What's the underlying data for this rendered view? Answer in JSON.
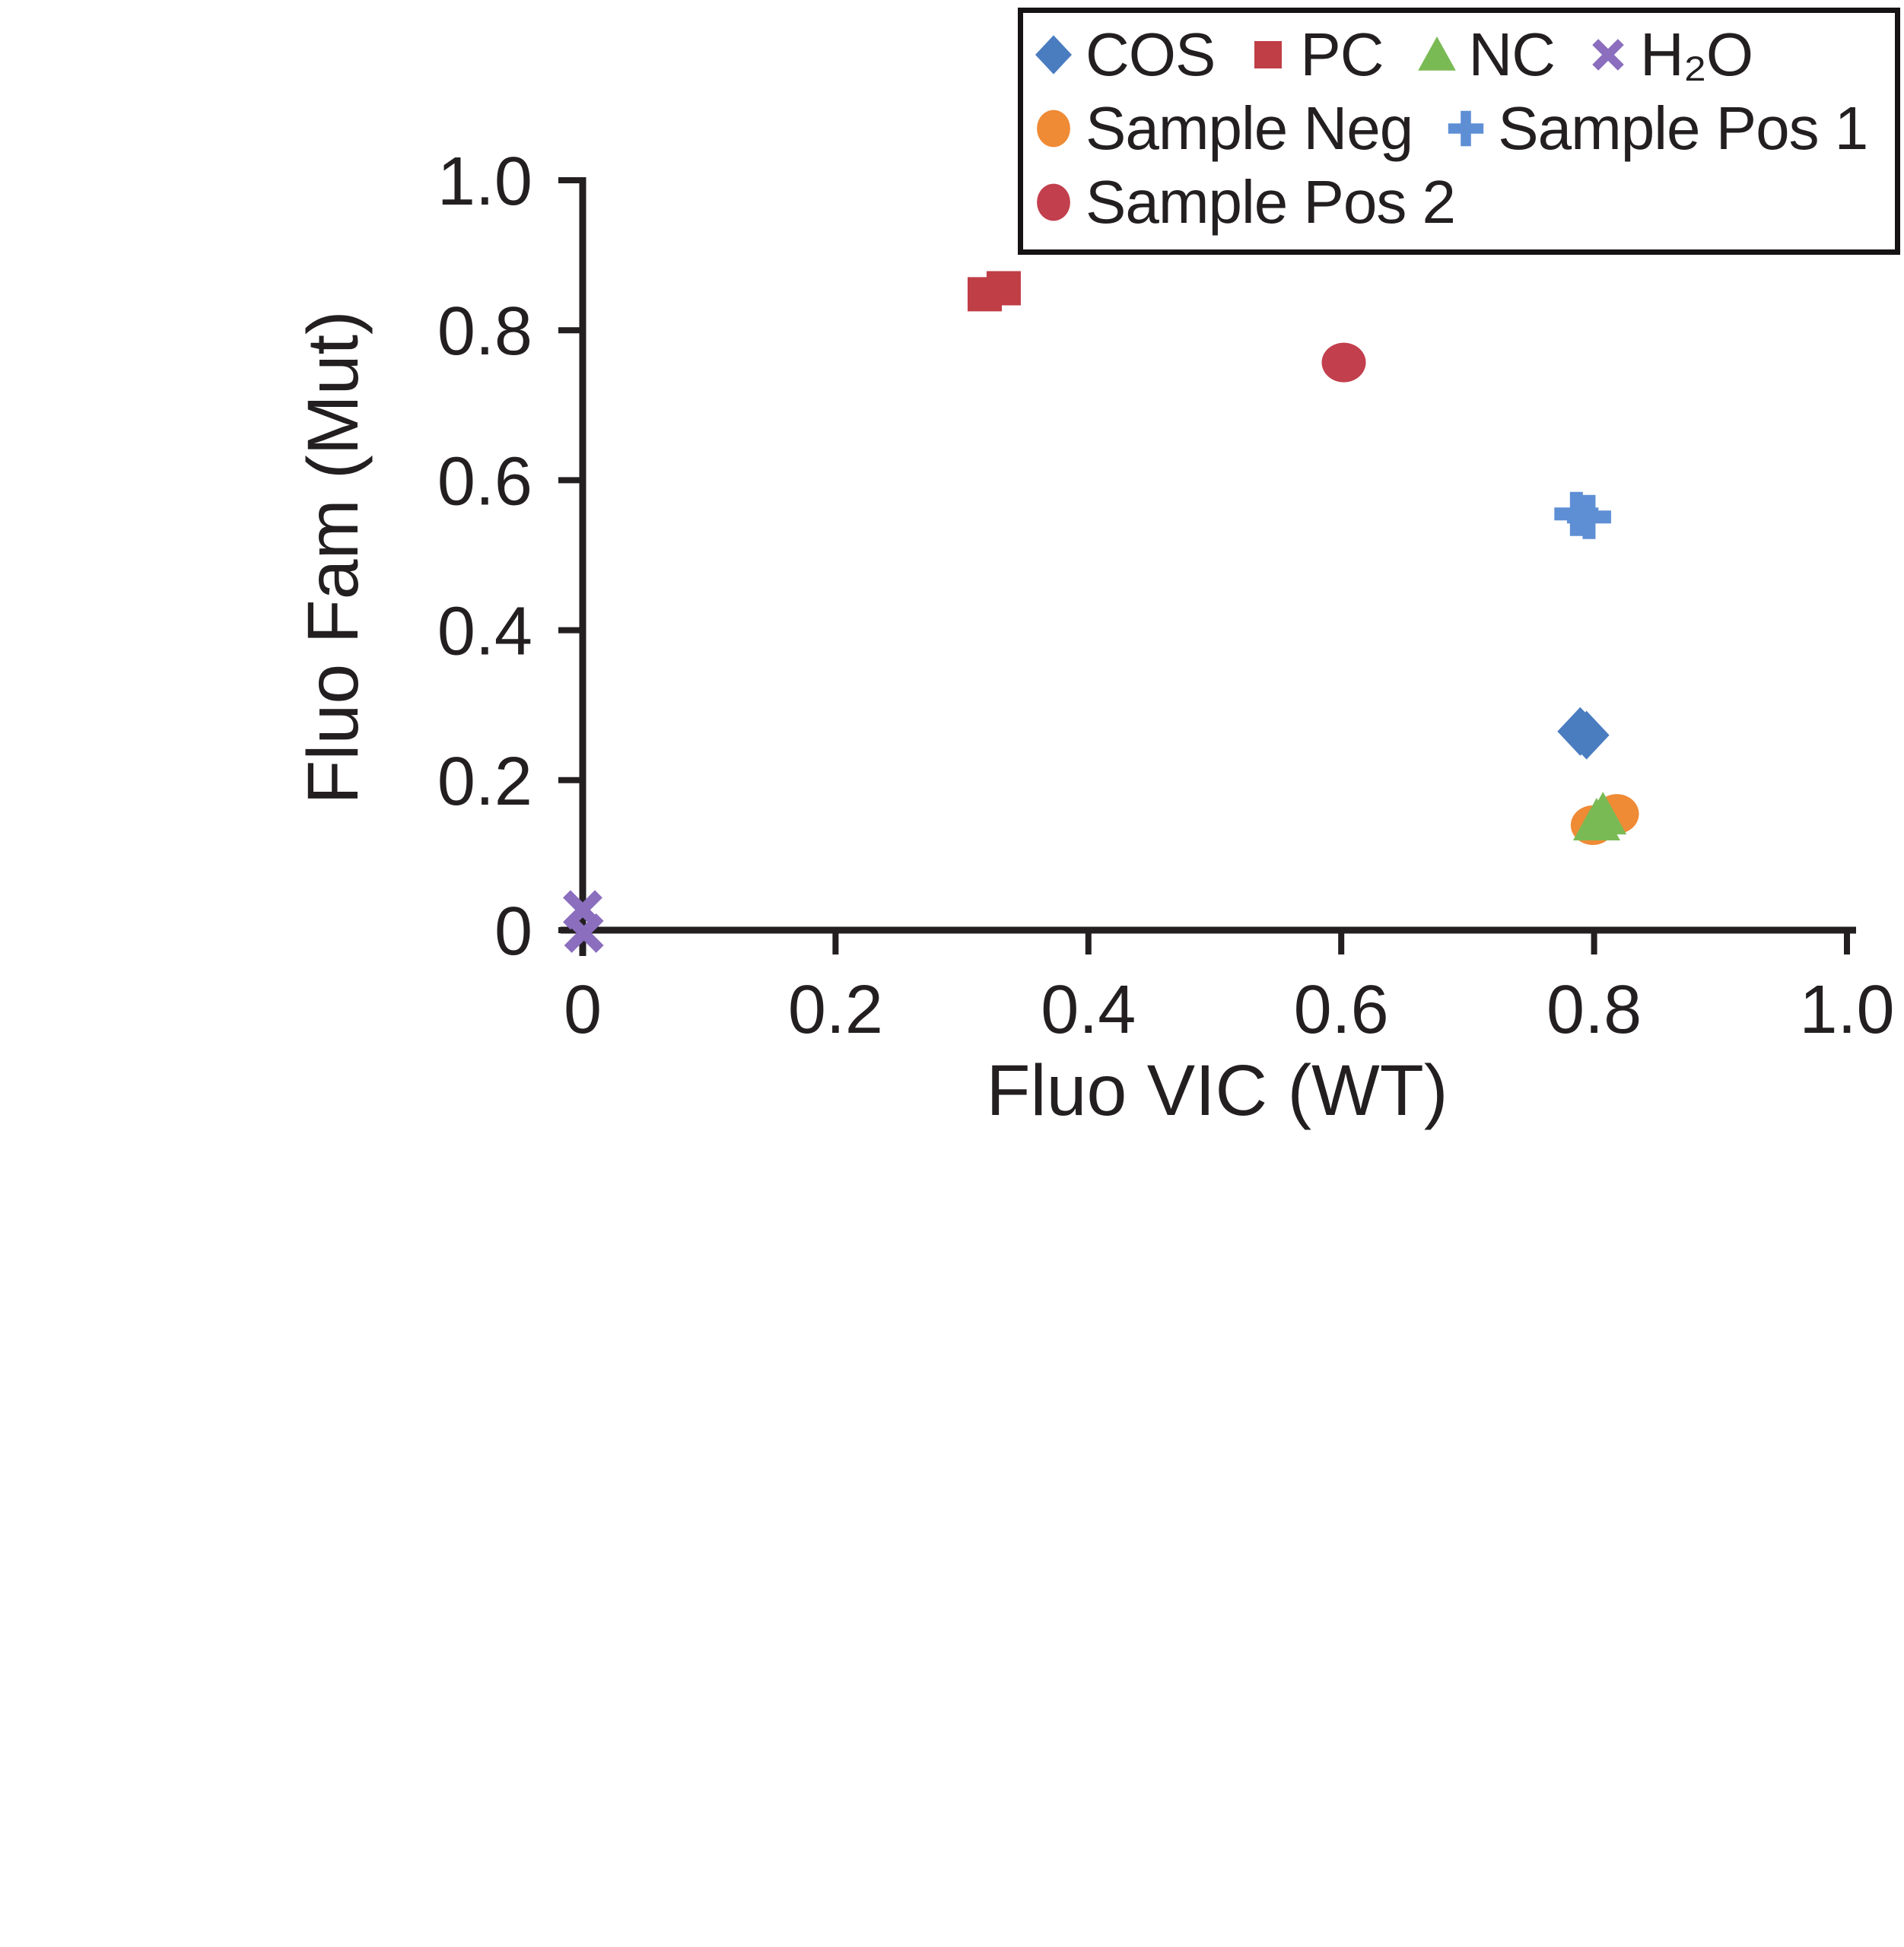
{
  "figure": {
    "background": "#ffffff",
    "axis_color": "#231f20",
    "text_color": "#231f20"
  },
  "chart_data": {
    "type": "scatter",
    "title": "",
    "xlabel": "Fluo VIC (WT)",
    "ylabel": "Fluo Fam (Mut)",
    "xlim": [
      0,
      1.0
    ],
    "ylim": [
      0,
      1.0
    ],
    "grid": false,
    "legend_position": "top-right",
    "x_ticks": [
      {
        "value": 0,
        "label": "0"
      },
      {
        "value": 0.2,
        "label": "0.2"
      },
      {
        "value": 0.4,
        "label": "0.4"
      },
      {
        "value": 0.6,
        "label": "0.6"
      },
      {
        "value": 0.8,
        "label": "0.8"
      },
      {
        "value": 1.0,
        "label": "1.0"
      }
    ],
    "y_ticks": [
      {
        "value": 0,
        "label": "0"
      },
      {
        "value": 0.2,
        "label": "0.2"
      },
      {
        "value": 0.4,
        "label": "0.4"
      },
      {
        "value": 0.6,
        "label": "0.6"
      },
      {
        "value": 0.8,
        "label": "0.8"
      },
      {
        "value": 1.0,
        "label": "1.0"
      }
    ],
    "series": [
      {
        "key": "cos",
        "name": "COS",
        "marker": "diamond",
        "color": "#4a7cc0",
        "points": [
          [
            0.789,
            0.265
          ],
          [
            0.794,
            0.26
          ]
        ]
      },
      {
        "key": "pc",
        "name": "PC",
        "marker": "square",
        "color": "#c03e46",
        "points": [
          [
            0.318,
            0.848
          ],
          [
            0.333,
            0.856
          ]
        ]
      },
      {
        "key": "sample-neg",
        "name": "Sample Neg",
        "marker": "circle",
        "color": "#ef8a35",
        "points": [
          [
            0.799,
            0.14
          ],
          [
            0.818,
            0.155
          ]
        ]
      },
      {
        "key": "nc",
        "name": "NC",
        "marker": "triangle",
        "color": "#7aba55",
        "points": [
          [
            0.802,
            0.146
          ],
          [
            0.807,
            0.154
          ]
        ]
      },
      {
        "key": "h2o",
        "name": "H₂O",
        "marker": "x",
        "color": "#8b6ebe",
        "points": [
          [
            0.0,
            0.027
          ],
          [
            0.001,
            -0.004
          ]
        ]
      },
      {
        "key": "sample-pos-1",
        "name": "Sample Pos 1",
        "marker": "plus",
        "color": "#5e8fd5",
        "points": [
          [
            0.786,
            0.555
          ],
          [
            0.796,
            0.551
          ]
        ]
      },
      {
        "key": "sample-pos-2",
        "name": "Sample Pos 2",
        "marker": "circle",
        "color": "#c23f4d",
        "points": [
          [
            0.602,
            0.757
          ]
        ]
      }
    ],
    "legend_rows": [
      [
        "cos",
        "pc",
        "nc",
        "h2o"
      ],
      [
        "sample-neg",
        "sample-pos-1"
      ],
      [
        "sample-pos-2"
      ]
    ]
  }
}
